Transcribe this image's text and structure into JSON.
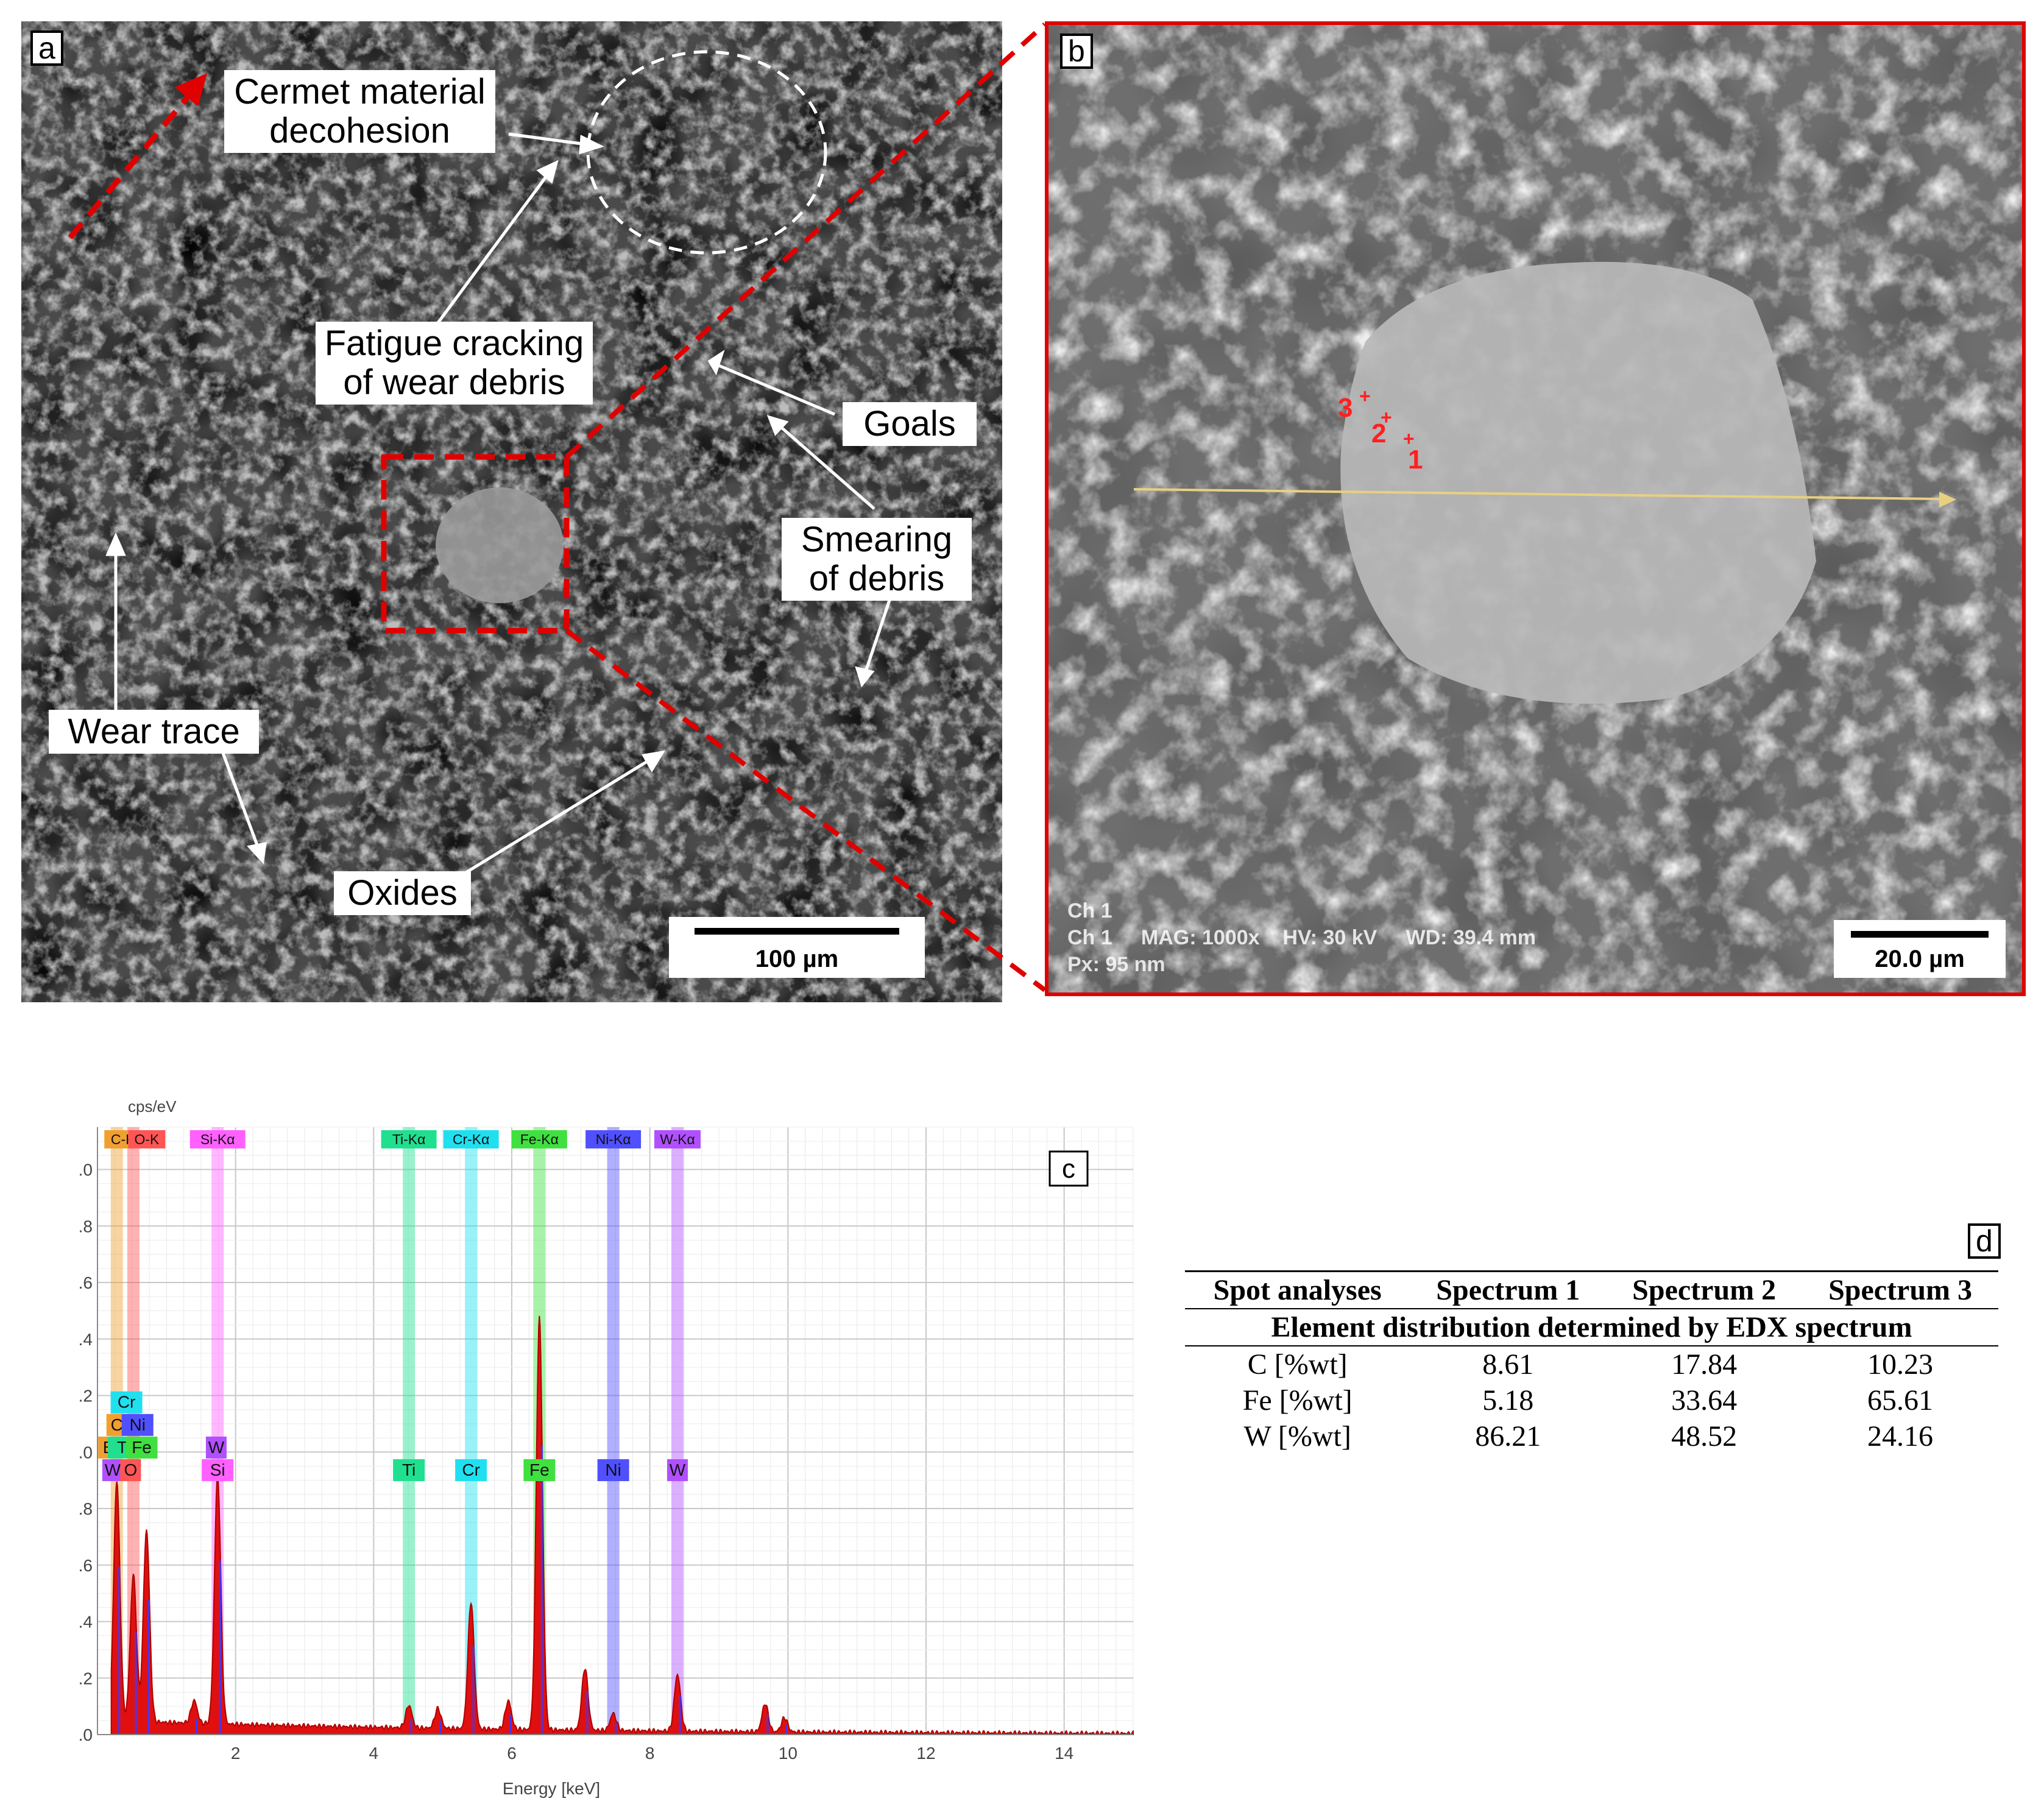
{
  "panel_a": {
    "letter": "a",
    "labels": {
      "cermet": [
        "Cermet material",
        "decohesion"
      ],
      "fatigue": [
        "Fatigue cracking",
        "of wear debris"
      ],
      "goals": "Goals",
      "smearing": [
        "Smearing",
        "of debris"
      ],
      "wear": "Wear trace",
      "oxides": "Oxides"
    },
    "scale_bar": "100 µm"
  },
  "panel_b": {
    "letter": "b",
    "spot_markers": [
      "1",
      "2",
      "3"
    ],
    "metadata": {
      "line1": "Ch 1",
      "line2": "Ch 1     MAG: 1000x    HV: 30 kV     WD: 39.4 mm",
      "line3": "Px: 95 nm"
    },
    "scale_bar": "20.0 µm"
  },
  "panel_c": {
    "letter": "c",
    "chart_data": {
      "type": "line",
      "ylabel": "cps/eV",
      "xlabel": "Energy [keV]",
      "xlim": [
        0,
        15
      ],
      "ylim": [
        0,
        2.15
      ],
      "x_ticks": [
        "2",
        "4",
        "6",
        "8",
        "10",
        "12",
        "14"
      ],
      "y_ticks": [
        "0.0",
        "0.2",
        "0.4",
        "0.6",
        "0.8",
        "1.0",
        "1.2",
        "1.4",
        "1.6",
        "1.8",
        "2.0"
      ],
      "grid": true,
      "element_lines": [
        {
          "name": "C-K",
          "energy": 0.28,
          "color": "#f0a030"
        },
        {
          "name": "O-K",
          "energy": 0.52,
          "color": "#ff5555"
        },
        {
          "name": "Si-Kα",
          "energy": 1.74,
          "color": "#ff60ff"
        },
        {
          "name": "Ti-Kα",
          "energy": 4.51,
          "color": "#20e090"
        },
        {
          "name": "Cr-Kα",
          "energy": 5.41,
          "color": "#20e0f0"
        },
        {
          "name": "Fe-Kα",
          "energy": 6.4,
          "color": "#40e040"
        },
        {
          "name": "Ni-Kα",
          "energy": 7.47,
          "color": "#5050ff"
        },
        {
          "name": "W-Kα",
          "energy": 8.4,
          "color": "#b050ff"
        }
      ],
      "top_labels": [
        "C-K",
        "O-K",
        "Si-Kα",
        "Ti-Kα",
        "Cr-Kα",
        "Fe-Kα",
        "Ni-Kα",
        "W-Kα"
      ],
      "marker_labels": [
        "Cr",
        "C",
        "Ni",
        "B",
        "Ti",
        "Fe",
        "W",
        "W",
        "O",
        "Si",
        "Ti",
        "Cr",
        "Fe",
        "Ni",
        "W"
      ],
      "spectrum_peaks": [
        {
          "energy": 0.28,
          "value": 0.85
        },
        {
          "energy": 0.52,
          "value": 0.52
        },
        {
          "energy": 0.71,
          "value": 0.68
        },
        {
          "energy": 1.4,
          "value": 0.08
        },
        {
          "energy": 1.74,
          "value": 0.88
        },
        {
          "energy": 4.51,
          "value": 0.08
        },
        {
          "energy": 4.93,
          "value": 0.07
        },
        {
          "energy": 5.41,
          "value": 0.45
        },
        {
          "energy": 5.95,
          "value": 0.1
        },
        {
          "energy": 6.4,
          "value": 1.46
        },
        {
          "energy": 7.06,
          "value": 0.22
        },
        {
          "energy": 7.47,
          "value": 0.06
        },
        {
          "energy": 8.4,
          "value": 0.2
        },
        {
          "energy": 9.67,
          "value": 0.1
        },
        {
          "energy": 9.95,
          "value": 0.05
        }
      ]
    }
  },
  "panel_d": {
    "letter": "d",
    "table": {
      "header": [
        "Spot analyses",
        "Spectrum 1",
        "Spectrum 2",
        "Spectrum 3"
      ],
      "subheader": "Element distribution determined by EDX spectrum",
      "rows": [
        {
          "label": "C [%wt]",
          "values": [
            "8.61",
            "17.84",
            "10.23"
          ]
        },
        {
          "label": "Fe [%wt]",
          "values": [
            "5.18",
            "33.64",
            "65.61"
          ]
        },
        {
          "label": "W [%wt]",
          "values": [
            "86.21",
            "48.52",
            "24.16"
          ]
        }
      ]
    }
  },
  "colors": {
    "accent_red": "#e00000",
    "arrow_white": "#ffffff",
    "spectrum_red": "#e01010",
    "trace_yellow": "#e8d080"
  }
}
